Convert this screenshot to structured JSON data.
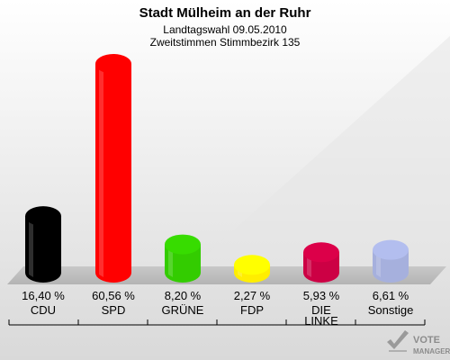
{
  "header": {
    "title": "Stadt Mülheim an der Ruhr",
    "subtitle": "Landtagswahl 09.05.2010",
    "subtitle2": "Zweitstimmen Stimmbezirk 135"
  },
  "chart_data": {
    "type": "bar",
    "title": "Stadt Mülheim an der Ruhr",
    "subtitle": "Landtagswahl 09.05.2010 / Zweitstimmen Stimmbezirk 135",
    "categories": [
      "CDU",
      "SPD",
      "GRÜNE",
      "FDP",
      "DIE LINKE",
      "Sonstige"
    ],
    "category_lines": [
      [
        "CDU"
      ],
      [
        "SPD"
      ],
      [
        "GRÜNE"
      ],
      [
        "FDP"
      ],
      [
        "DIE",
        "LINKE"
      ],
      [
        "Sonstige"
      ]
    ],
    "values": [
      16.4,
      60.56,
      8.2,
      2.27,
      5.93,
      6.61
    ],
    "value_labels": [
      "16,40 %",
      "60,56 %",
      "8,20 %",
      "2,27 %",
      "5,93 %",
      "6,61 %"
    ],
    "colors": [
      "#000000",
      "#ff0000",
      "#33cc00",
      "#ffee00",
      "#cc0044",
      "#a6b0dd"
    ],
    "unit": "%",
    "ylim": [
      0,
      60.56
    ],
    "grid": false,
    "legend": "none"
  },
  "logo": {
    "line1": "VOTE",
    "line2": "MANAGER"
  }
}
